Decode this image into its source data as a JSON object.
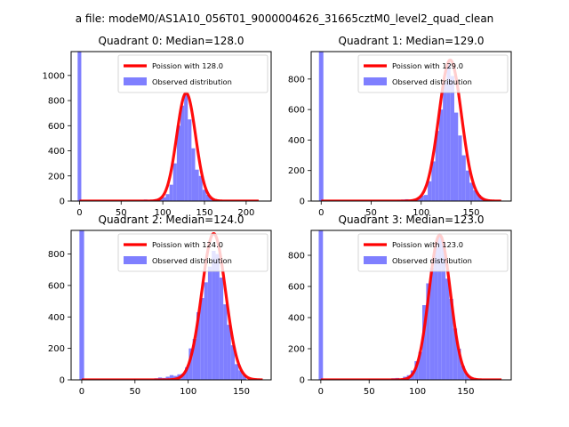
{
  "figure": {
    "suptitle": "a file: modeM0/AS1A10_056T01_9000004626_31665cztM0_level2_quad_clean"
  },
  "colors": {
    "hist": "#7f7fff",
    "fit": "#ff0000",
    "axes": "#000000",
    "background": "#ffffff"
  },
  "chart_data": [
    {
      "type": "bar",
      "title": "Quadrant 0: Median=128.0",
      "median": 128.0,
      "xlim": [
        -10,
        230
      ],
      "ylim": [
        0,
        1190
      ],
      "xticks": [
        0,
        50,
        100,
        150,
        200
      ],
      "yticks": [
        0,
        200,
        400,
        600,
        800,
        1000
      ],
      "legend": [
        "Poission with 128.0",
        "Observed distribution"
      ],
      "legend_loc": "upper right",
      "zero_bin_height": 1190,
      "bin_width": 4.4,
      "hist_values": [
        [
          0,
          1190
        ],
        [
          75,
          8
        ],
        [
          79.4,
          12
        ],
        [
          83.8,
          6
        ],
        [
          88.2,
          10
        ],
        [
          92.6,
          15
        ],
        [
          97,
          20
        ],
        [
          101.4,
          30
        ],
        [
          105.8,
          55
        ],
        [
          110.2,
          130
        ],
        [
          114.6,
          300
        ],
        [
          119,
          600
        ],
        [
          123.4,
          760
        ],
        [
          127.8,
          860
        ],
        [
          132.2,
          650
        ],
        [
          136.6,
          420
        ],
        [
          141,
          250
        ],
        [
          145.4,
          200
        ],
        [
          149.8,
          90
        ],
        [
          154.2,
          50
        ],
        [
          158.6,
          20
        ],
        [
          163,
          10
        ],
        [
          167.4,
          5
        ]
      ],
      "fit_mean": 128.0,
      "fit_peak": 860,
      "fit_x": [
        0,
        215
      ]
    },
    {
      "type": "bar",
      "title": "Quadrant 1: Median=129.0",
      "median": 129.0,
      "xlim": [
        -10,
        190
      ],
      "ylim": [
        0,
        980
      ],
      "xticks": [
        0,
        50,
        100,
        150
      ],
      "yticks": [
        0,
        200,
        400,
        600,
        800
      ],
      "legend": [
        "Poission with 129.0",
        "Observed distribution"
      ],
      "legend_loc": "upper right",
      "zero_bin_height": 980,
      "bin_width": 3.8,
      "hist_values": [
        [
          0,
          980
        ],
        [
          78,
          8
        ],
        [
          81.8,
          10
        ],
        [
          85.6,
          12
        ],
        [
          89.4,
          6
        ],
        [
          93.2,
          10
        ],
        [
          97,
          20
        ],
        [
          100.8,
          35
        ],
        [
          104.6,
          40
        ],
        [
          108.4,
          130
        ],
        [
          112.2,
          260
        ],
        [
          116,
          460
        ],
        [
          119.8,
          600
        ],
        [
          123.6,
          780
        ],
        [
          127.4,
          900
        ],
        [
          131.2,
          820
        ],
        [
          135,
          580
        ],
        [
          138.8,
          430
        ],
        [
          142.6,
          300
        ],
        [
          146.4,
          200
        ],
        [
          150.2,
          120
        ],
        [
          154,
          70
        ],
        [
          157.8,
          40
        ],
        [
          161.6,
          20
        ],
        [
          165.4,
          10
        ],
        [
          169.2,
          5
        ]
      ],
      "fit_mean": 129.0,
      "fit_peak": 925,
      "fit_x": [
        0,
        180
      ]
    },
    {
      "type": "bar",
      "title": "Quadrant 2: Median=124.0",
      "median": 124.0,
      "xlim": [
        -10,
        178
      ],
      "ylim": [
        0,
        950
      ],
      "xticks": [
        0,
        50,
        100,
        150
      ],
      "yticks": [
        0,
        200,
        400,
        600,
        800
      ],
      "legend": [
        "Poission with 124.0",
        "Observed distribution"
      ],
      "legend_loc": "upper right",
      "zero_bin_height": 950,
      "bin_width": 3.6,
      "hist_values": [
        [
          0,
          950
        ],
        [
          70,
          10
        ],
        [
          73.6,
          15
        ],
        [
          77.2,
          12
        ],
        [
          80.8,
          20
        ],
        [
          84.4,
          30
        ],
        [
          88,
          25
        ],
        [
          91.6,
          35
        ],
        [
          95.2,
          40
        ],
        [
          98.8,
          80
        ],
        [
          102.4,
          200
        ],
        [
          106,
          260
        ],
        [
          109.6,
          430
        ],
        [
          113.2,
          520
        ],
        [
          116.8,
          620
        ],
        [
          120.4,
          720
        ],
        [
          124,
          820
        ],
        [
          127.6,
          800
        ],
        [
          131.2,
          650
        ],
        [
          134.8,
          480
        ],
        [
          138.4,
          350
        ],
        [
          142,
          220
        ],
        [
          145.6,
          100
        ],
        [
          149.2,
          60
        ],
        [
          152.8,
          30
        ]
      ],
      "fit_mean": 124.0,
      "fit_peak": 930,
      "fit_x": [
        0,
        170
      ]
    },
    {
      "type": "bar",
      "title": "Quadrant 3: Median=123.0",
      "median": 123.0,
      "xlim": [
        -10,
        197
      ],
      "ylim": [
        0,
        960
      ],
      "xticks": [
        0,
        50,
        100,
        150
      ],
      "yticks": [
        0,
        200,
        400,
        600,
        800
      ],
      "legend": [
        "Poission with 123.0",
        "Observed distribution"
      ],
      "legend_loc": "upper right",
      "zero_bin_height": 960,
      "bin_width": 4.0,
      "hist_values": [
        [
          0,
          960
        ],
        [
          75,
          10
        ],
        [
          79,
          12
        ],
        [
          83,
          8
        ],
        [
          87,
          20
        ],
        [
          91,
          30
        ],
        [
          95,
          60
        ],
        [
          99,
          120
        ],
        [
          103,
          180
        ],
        [
          107,
          480
        ],
        [
          111,
          620
        ],
        [
          115,
          720
        ],
        [
          119,
          850
        ],
        [
          123,
          930
        ],
        [
          127,
          880
        ],
        [
          131,
          650
        ],
        [
          135,
          520
        ],
        [
          139,
          330
        ],
        [
          143,
          200
        ],
        [
          147,
          90
        ],
        [
          151,
          40
        ],
        [
          155,
          20
        ],
        [
          159,
          10
        ]
      ],
      "fit_mean": 123.0,
      "fit_peak": 930,
      "fit_x": [
        0,
        187
      ]
    }
  ]
}
